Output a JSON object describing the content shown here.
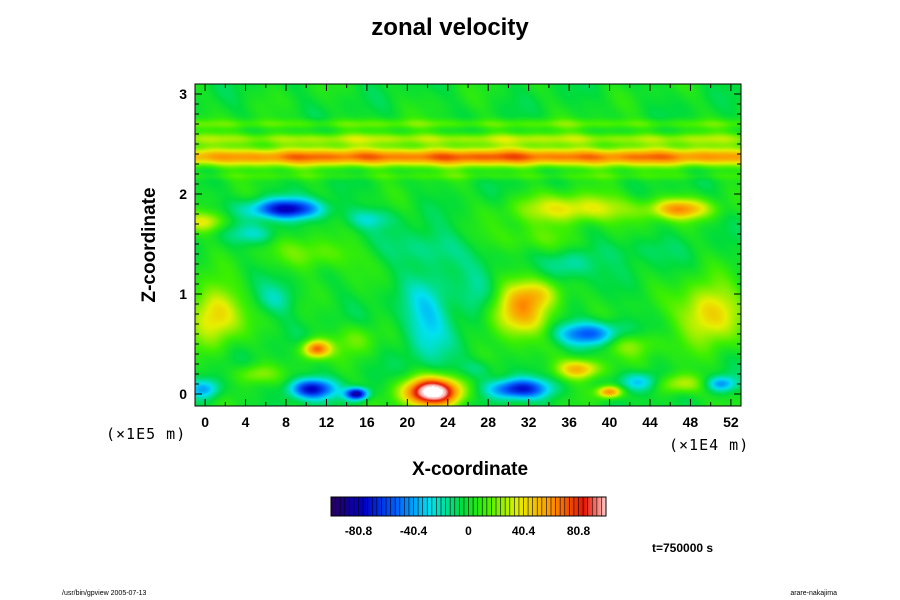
{
  "chart_data": {
    "type": "heatmap",
    "title": "zonal velocity",
    "xlabel": "X-coordinate",
    "ylabel": "Z-coordinate",
    "x_scale_label": "(×1E4 m)",
    "z_scale_label": "(×1E5 m)",
    "xlim": [
      -1,
      53
    ],
    "ylim": [
      -0.12,
      3.1
    ],
    "x_ticks": [
      0,
      4,
      8,
      12,
      16,
      20,
      24,
      28,
      32,
      36,
      40,
      44,
      48,
      52
    ],
    "y_ticks": [
      0,
      1,
      2,
      3
    ],
    "colorbar": {
      "min": -101,
      "max": 101,
      "ticks": [
        -80.8,
        -40.4,
        0,
        40.4,
        80.8
      ],
      "tick_labels": [
        "-80.8",
        "-40.4",
        "0",
        "40.4",
        "80.8"
      ],
      "colormap": "rainbow"
    },
    "annotation": "t=750000 s",
    "features": [
      {
        "x": 26,
        "z": 2.37,
        "sx": 60,
        "sz": 0.09,
        "v": 70
      },
      {
        "x": 26,
        "z": 2.55,
        "sx": 60,
        "sz": 0.06,
        "v": 28
      },
      {
        "x": 26,
        "z": 2.7,
        "sx": 60,
        "sz": 0.05,
        "v": 16
      },
      {
        "x": 26,
        "z": 2.18,
        "sx": 60,
        "sz": 0.04,
        "v": 10
      },
      {
        "x": 8,
        "z": 1.85,
        "sx": 3.5,
        "sz": 0.1,
        "v": -75
      },
      {
        "x": 5,
        "z": 1.6,
        "sx": 2.5,
        "sz": 0.1,
        "v": -22
      },
      {
        "x": 16,
        "z": 1.75,
        "sx": 2.5,
        "sz": 0.1,
        "v": -22
      },
      {
        "x": 22,
        "z": 1.45,
        "sx": 4,
        "sz": 0.18,
        "v": -18
      },
      {
        "x": 0,
        "z": 1.72,
        "sx": 2,
        "sz": 0.1,
        "v": 35
      },
      {
        "x": 11,
        "z": 1.4,
        "sx": 4,
        "sz": 0.16,
        "v": 22
      },
      {
        "x": 37,
        "z": 1.85,
        "sx": 6,
        "sz": 0.14,
        "v": 40
      },
      {
        "x": 47,
        "z": 1.85,
        "sx": 3,
        "sz": 0.1,
        "v": 55
      },
      {
        "x": 33,
        "z": 1.55,
        "sx": 4,
        "sz": 0.15,
        "v": 18
      },
      {
        "x": 42,
        "z": 1.45,
        "sx": 4,
        "sz": 0.14,
        "v": -10
      },
      {
        "x": 1,
        "z": 0.8,
        "sx": 2.5,
        "sz": 0.28,
        "v": 48
      },
      {
        "x": 50,
        "z": 0.8,
        "sx": 3,
        "sz": 0.28,
        "v": 50
      },
      {
        "x": 31,
        "z": 0.8,
        "sx": 3,
        "sz": 0.24,
        "v": 55
      },
      {
        "x": 33,
        "z": 1.0,
        "sx": 2.5,
        "sz": 0.15,
        "v": 32
      },
      {
        "x": 22,
        "z": 0.75,
        "sx": 2.5,
        "sz": 0.4,
        "v": -32
      },
      {
        "x": 27,
        "z": 0.95,
        "sx": 2,
        "sz": 0.25,
        "v": -20
      },
      {
        "x": 38,
        "z": 0.6,
        "sx": 3.5,
        "sz": 0.12,
        "v": -58
      },
      {
        "x": 36,
        "z": 1.3,
        "sx": 2.5,
        "sz": 0.15,
        "v": -25
      },
      {
        "x": 42,
        "z": 0.5,
        "sx": 3,
        "sz": 0.14,
        "v": 28
      },
      {
        "x": 11,
        "z": 0.45,
        "sx": 1.4,
        "sz": 0.09,
        "v": 72
      },
      {
        "x": 7,
        "z": 0.95,
        "sx": 2,
        "sz": 0.15,
        "v": -18
      },
      {
        "x": 15,
        "z": 0.55,
        "sx": 2,
        "sz": 0.15,
        "v": 18
      },
      {
        "x": 22.5,
        "z": 0.02,
        "sx": 2.8,
        "sz": 0.14,
        "v": 118
      },
      {
        "x": 10.5,
        "z": 0.05,
        "sx": 2.2,
        "sz": 0.1,
        "v": -75
      },
      {
        "x": 15,
        "z": 0.0,
        "sx": 1.1,
        "sz": 0.06,
        "v": -88
      },
      {
        "x": 31,
        "z": 0.05,
        "sx": 3,
        "sz": 0.1,
        "v": -70
      },
      {
        "x": 40,
        "z": 0.02,
        "sx": 1.2,
        "sz": 0.06,
        "v": 65
      },
      {
        "x": 43,
        "z": 0.12,
        "sx": 2,
        "sz": 0.1,
        "v": -40
      },
      {
        "x": 37,
        "z": 0.25,
        "sx": 2.2,
        "sz": 0.1,
        "v": 55
      },
      {
        "x": 47,
        "z": 0.1,
        "sx": 2.5,
        "sz": 0.1,
        "v": 35
      },
      {
        "x": 51,
        "z": 0.1,
        "sx": 1.5,
        "sz": 0.08,
        "v": -45
      },
      {
        "x": 0,
        "z": 0.05,
        "sx": 1.5,
        "sz": 0.1,
        "v": -40
      },
      {
        "x": 5,
        "z": 0.2,
        "sx": 2,
        "sz": 0.1,
        "v": 25
      },
      {
        "x": 27,
        "z": 0.25,
        "sx": 2,
        "sz": 0.1,
        "v": -15
      }
    ]
  },
  "footer": {
    "left": "/usr/bin/gpview 2005-07-13",
    "right": "arare-nakajima"
  }
}
